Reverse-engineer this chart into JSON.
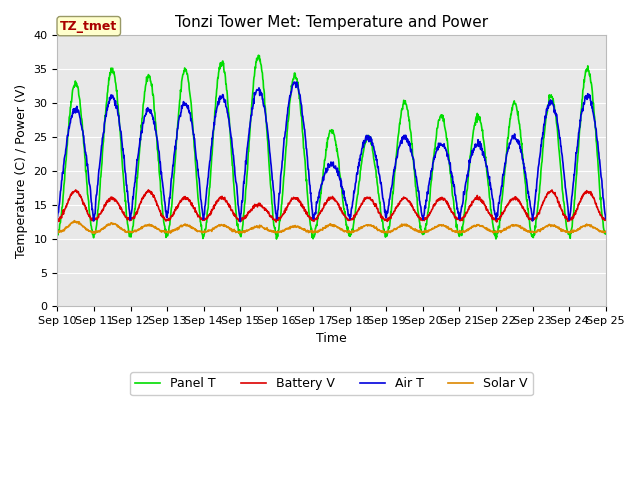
{
  "title": "Tonzi Tower Met: Temperature and Power",
  "xlabel": "Time",
  "ylabel": "Temperature (C) / Power (V)",
  "ylim": [
    0,
    40
  ],
  "yticks": [
    0,
    5,
    10,
    15,
    20,
    25,
    30,
    35,
    40
  ],
  "x_labels": [
    "Sep 10",
    "Sep 11",
    "Sep 12",
    "Sep 13",
    "Sep 14",
    "Sep 15",
    "Sep 16",
    "Sep 17",
    "Sep 18",
    "Sep 19",
    "Sep 20",
    "Sep 21",
    "Sep 22",
    "Sep 23",
    "Sep 24",
    "Sep 25"
  ],
  "legend_labels": [
    "Panel T",
    "Battery V",
    "Air T",
    "Solar V"
  ],
  "line_colors": [
    "#00dd00",
    "#dd0000",
    "#0000dd",
    "#dd8800"
  ],
  "annotation_text": "TZ_tmet",
  "annotation_color": "#aa0000",
  "annotation_bg": "#ffffcc",
  "annotation_edge": "#999966",
  "fig_bg": "#ffffff",
  "plot_bg": "#e8e8e8",
  "grid_color": "#ffffff",
  "title_fontsize": 11,
  "label_fontsize": 9,
  "tick_fontsize": 8,
  "legend_fontsize": 9,
  "line_width": 1.2,
  "panel_peaks": [
    33,
    35,
    34,
    35,
    36,
    37,
    34,
    26,
    25,
    30,
    28,
    28,
    30,
    31,
    35
  ],
  "air_peaks": [
    29,
    31,
    29,
    30,
    31,
    32,
    33,
    21,
    25,
    25,
    24,
    24,
    25,
    30,
    31
  ],
  "battery_peaks": [
    17,
    16,
    17,
    16,
    16,
    15,
    16,
    16,
    16,
    16,
    16,
    16,
    16,
    17,
    17
  ],
  "solar_peaks": [
    12.5,
    12.2,
    12.0,
    12.0,
    12.0,
    11.8,
    11.8,
    12.0,
    12.0,
    12.0,
    12.0,
    12.0,
    12.0,
    12.0,
    12.0
  ],
  "panel_base": 10.5,
  "air_base": 13.0,
  "battery_base": 12.8,
  "solar_base": 11.0,
  "n_days": 15,
  "pts_per_day": 96,
  "random_seed": 42
}
